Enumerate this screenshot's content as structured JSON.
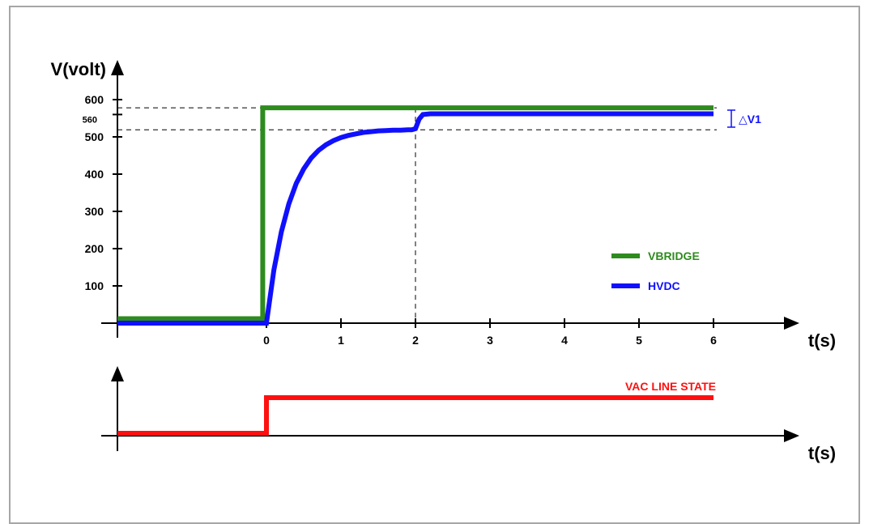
{
  "chart_data": [
    {
      "type": "line",
      "ylabel": "V(volt)",
      "xlabel": "t(s)",
      "x_ticks": [
        "0",
        "1",
        "2",
        "3",
        "4",
        "5",
        "6"
      ],
      "y_ticks": [
        "600",
        "560",
        "500",
        "400",
        "300",
        "200",
        "100"
      ],
      "xlim": [
        -2,
        7
      ],
      "ylim": [
        0,
        650
      ],
      "legend_position": "center-right",
      "series": [
        {
          "name": "VBRIDGE",
          "color": "#2e8b1e",
          "x": [
            -2,
            -0.05,
            -0.05,
            6
          ],
          "y": [
            12,
            12,
            578,
            578
          ]
        },
        {
          "name": "HVDC",
          "color": "#1010ff",
          "x": [
            -2,
            0,
            0.1,
            0.2,
            0.3,
            0.4,
            0.5,
            0.6,
            0.7,
            0.8,
            0.9,
            1.0,
            1.1,
            1.2,
            1.3,
            1.4,
            1.5,
            1.6,
            1.7,
            1.8,
            1.9,
            1.95,
            2.0,
            2.05,
            2.1,
            2.2,
            2.5,
            3,
            4,
            5,
            6
          ],
          "y": [
            0,
            0,
            143,
            245,
            320,
            375,
            414,
            443,
            464,
            479,
            490,
            498,
            504,
            508,
            512,
            514,
            516,
            517,
            518,
            518,
            519,
            519,
            522,
            548,
            560,
            562,
            562,
            562,
            562,
            562,
            562
          ]
        }
      ],
      "reference_lines": [
        {
          "y": 578,
          "style": "dashed"
        },
        {
          "y": 519,
          "style": "dashed"
        },
        {
          "x": 2,
          "style": "dashed"
        }
      ],
      "annotation": "△V1"
    },
    {
      "type": "line",
      "xlabel": "t(s)",
      "series": [
        {
          "name": "VAC LINE STATE",
          "color": "#ff1010",
          "x": [
            -2,
            0,
            0,
            6
          ],
          "y": [
            0,
            0,
            1,
            1
          ]
        }
      ]
    }
  ]
}
